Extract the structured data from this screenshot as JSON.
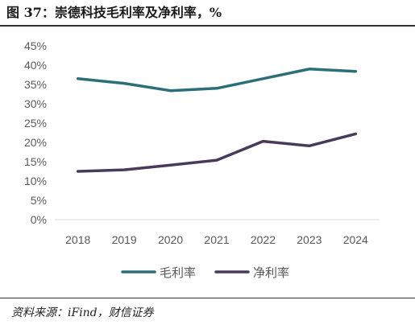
{
  "figure": {
    "title": "图 37：崇德科技毛利率及净利率，%",
    "source": "资料来源：iFind，财信证券"
  },
  "colors": {
    "gross_margin": "#2d6f78",
    "net_margin": "#4a3a5a",
    "axis": "#d9d9d9",
    "tick_text": "#595959"
  },
  "chart_data": {
    "type": "line",
    "x": [
      "2018",
      "2019",
      "2020",
      "2021",
      "2022",
      "2023",
      "2024"
    ],
    "ylim": [
      0,
      45
    ],
    "yticks": [
      "0%",
      "5%",
      "10%",
      "15%",
      "20%",
      "25%",
      "30%",
      "35%",
      "40%",
      "45%"
    ],
    "grid": false,
    "legend_position": "bottom",
    "series": [
      {
        "name": "毛利率",
        "values": [
          36.5,
          35.3,
          33.4,
          34.0,
          36.5,
          39.0,
          38.4
        ]
      },
      {
        "name": "净利率",
        "values": [
          12.5,
          12.9,
          14.1,
          15.4,
          20.3,
          19.1,
          22.2
        ]
      }
    ]
  }
}
